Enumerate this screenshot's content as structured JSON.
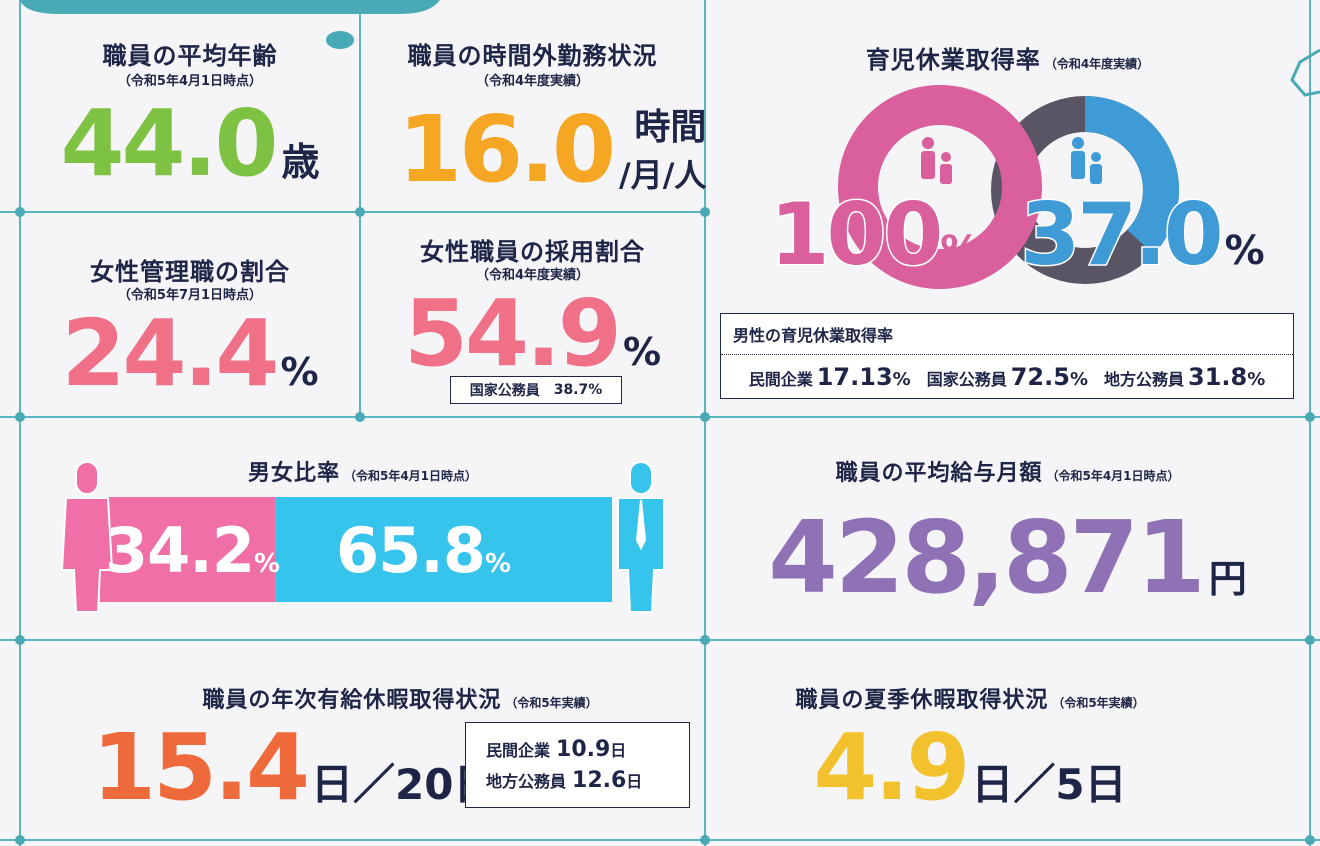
{
  "average_age": {
    "title": "職員の平均年齢",
    "note": "（令和5年4月1日時点）",
    "value": "44.0",
    "unit": "歳"
  },
  "overtime": {
    "title": "職員の時間外勤務状況",
    "note": "（令和4年度実績）",
    "value": "16.0",
    "unit": "時間",
    "unit2": "/月/人"
  },
  "female_managers": {
    "title": "女性管理職の割合",
    "note": "（令和5年7月1日時点）",
    "value": "24.4",
    "unit": "%"
  },
  "female_hiring": {
    "title": "女性職員の採用割合",
    "note": "（令和4年度実績）",
    "value": "54.9",
    "unit": "%",
    "compare": {
      "label": "国家公務員",
      "value": "38.7",
      "unit": "%"
    }
  },
  "childcare_leave": {
    "title": "育児休業取得率",
    "note": "（令和4年度実績）",
    "female": {
      "value": "100",
      "unit": "%"
    },
    "male": {
      "value": "37.0",
      "unit": "%"
    },
    "male_comparison": {
      "title": "男性の育児休業取得率",
      "items": [
        {
          "label": "民間企業",
          "value": "17.13",
          "unit": "%"
        },
        {
          "label": "国家公務員",
          "value": "72.5",
          "unit": "%"
        },
        {
          "label": "地方公務員",
          "value": "31.8",
          "unit": "%"
        }
      ]
    }
  },
  "gender_ratio": {
    "title": "男女比率",
    "note": "（令和5年4月1日時点）",
    "female": {
      "value": "34.2",
      "unit": "%"
    },
    "male": {
      "value": "65.8",
      "unit": "%"
    }
  },
  "salary": {
    "title": "職員の平均給与月額",
    "note": "（令和5年4月1日時点）",
    "value": "428,871",
    "unit": "円"
  },
  "annual_leave": {
    "title": "職員の年次有給休暇取得状況",
    "note": "（令和5年実績）",
    "value": "15.4",
    "unit": "日",
    "total": "／20日",
    "items": [
      {
        "label": "民間企業",
        "value": "10.9",
        "unit": "日"
      },
      {
        "label": "地方公務員",
        "value": "12.6",
        "unit": "日"
      }
    ]
  },
  "summer_leave": {
    "title": "職員の夏季休暇取得状況",
    "note": "（令和5年実績）",
    "value": "4.9",
    "unit": "日",
    "total": "／5日"
  }
}
